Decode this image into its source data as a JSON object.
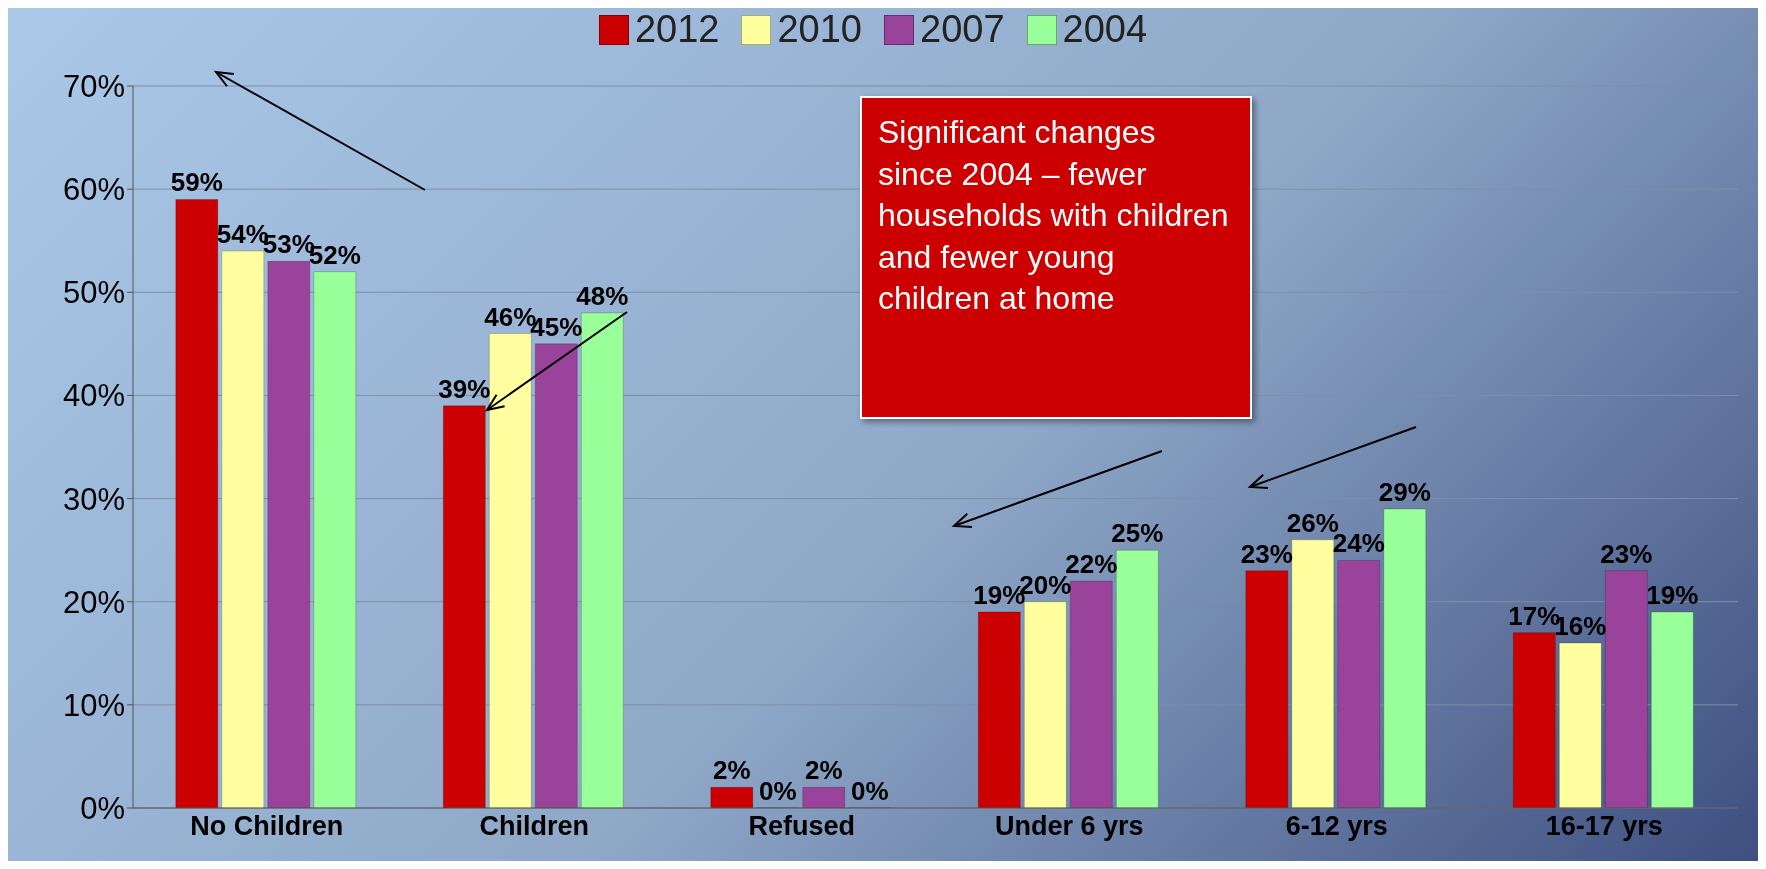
{
  "chart_data": {
    "type": "bar",
    "categories": [
      "No Children",
      "Children",
      "Refused",
      "Under 6 yrs",
      "6-12 yrs",
      "16-17 yrs"
    ],
    "series": [
      {
        "name": "2012",
        "color": "#cc0000",
        "values": [
          59,
          39,
          2,
          19,
          23,
          17
        ],
        "value_labels": [
          "59%",
          "39%",
          "2%",
          "19%",
          "23%",
          "17%"
        ]
      },
      {
        "name": "2010",
        "color": "#ffffa0",
        "values": [
          54,
          46,
          0,
          20,
          26,
          16
        ],
        "value_labels": [
          "54%",
          "46%",
          "0%",
          "20%",
          "26%",
          "16%"
        ]
      },
      {
        "name": "2007",
        "color": "#99449a",
        "values": [
          53,
          45,
          2,
          22,
          24,
          23
        ],
        "value_labels": [
          "53%",
          "45%",
          "2%",
          "22%",
          "24%",
          "23%"
        ]
      },
      {
        "name": "2004",
        "color": "#99ff99",
        "values": [
          52,
          48,
          0,
          25,
          29,
          19
        ],
        "value_labels": [
          "52%",
          "48%",
          "0%",
          "25%",
          "29%",
          "19%"
        ]
      }
    ],
    "ylim": [
      0,
      70
    ],
    "yticks": [
      {
        "value": 0,
        "label": "0%"
      },
      {
        "value": 10,
        "label": "10%"
      },
      {
        "value": 20,
        "label": "20%"
      },
      {
        "value": 30,
        "label": "30%"
      },
      {
        "value": 40,
        "label": "40%"
      },
      {
        "value": 50,
        "label": "50%"
      },
      {
        "value": 60,
        "label": "60%"
      },
      {
        "value": 70,
        "label": "70%"
      }
    ],
    "grid": "y",
    "legend": "top",
    "annotations": [
      "Significant changes since 2004 – fewer households with children and fewer young children at home"
    ]
  }
}
